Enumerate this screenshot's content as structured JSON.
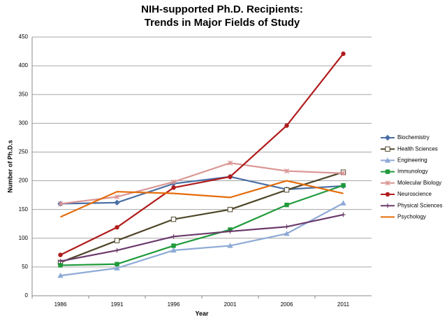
{
  "chart_data": {
    "type": "line",
    "title": [
      "NIH-supported Ph.D. Recipients:",
      "Trends in Major Fields of Study"
    ],
    "x_label": "Year",
    "y_label": "Number of Ph.D.s",
    "categories": [
      "1986",
      "1991",
      "1996",
      "2001",
      "2006",
      "2011"
    ],
    "series": [
      {
        "name": "Biochemistry",
        "color": "#4a6fa5",
        "marker": "diamond",
        "values": [
          160,
          162,
          195,
          207,
          185,
          191
        ]
      },
      {
        "name": "Health Sciences",
        "color": "#4d4528",
        "marker": "open-square",
        "values": [
          58,
          96,
          133,
          150,
          184,
          215
        ]
      },
      {
        "name": "Engineering",
        "color": "#8eaad6",
        "marker": "triangle",
        "values": [
          35,
          48,
          79,
          87,
          108,
          161
        ]
      },
      {
        "name": "Immunology",
        "color": "#1e9a3a",
        "marker": "square",
        "values": [
          53,
          55,
          87,
          115,
          158,
          192
        ]
      },
      {
        "name": "Molecular Biology",
        "color": "#d99694",
        "marker": "x",
        "values": [
          160,
          172,
          198,
          231,
          217,
          213
        ]
      },
      {
        "name": "Neuroscience",
        "color": "#b01c1c",
        "marker": "circle",
        "values": [
          71,
          119,
          188,
          207,
          296,
          421
        ]
      },
      {
        "name": "Physical Sciences",
        "color": "#6b3a6b",
        "marker": "plus",
        "values": [
          60,
          79,
          103,
          112,
          120,
          141
        ]
      },
      {
        "name": "Psychology",
        "color": "#e46c0a",
        "marker": "none",
        "values": [
          137,
          181,
          178,
          171,
          200,
          178
        ]
      }
    ],
    "ylim": [
      0,
      450
    ],
    "yticks": [
      0,
      50,
      100,
      150,
      200,
      250,
      300,
      350,
      400,
      450
    ],
    "grid": true,
    "legend": "right"
  }
}
